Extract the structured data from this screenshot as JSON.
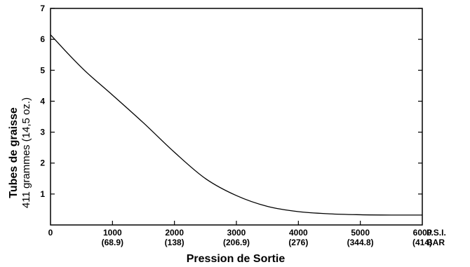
{
  "chart_data": {
    "type": "line",
    "xlabel": "Pression de Sortie",
    "ylabel": "Tubes de graisse",
    "ylabel_sub": "411 grammes (14,5 oz.)",
    "x_unit_primary": "P.S.I.",
    "x_unit_secondary": "BAR",
    "xlim": [
      0,
      6000
    ],
    "ylim": [
      0,
      7
    ],
    "x_ticks": [
      {
        "value": 0,
        "label": "0",
        "sublabel": ""
      },
      {
        "value": 1000,
        "label": "1000",
        "sublabel": "(68.9)"
      },
      {
        "value": 2000,
        "label": "2000",
        "sublabel": "(138)"
      },
      {
        "value": 3000,
        "label": "3000",
        "sublabel": "(206.9)"
      },
      {
        "value": 4000,
        "label": "4000",
        "sublabel": "(276)"
      },
      {
        "value": 5000,
        "label": "5000",
        "sublabel": "(344.8)"
      },
      {
        "value": 6000,
        "label": "6000",
        "sublabel": "(414)"
      }
    ],
    "y_ticks": [
      "1",
      "2",
      "3",
      "4",
      "5",
      "6",
      "7"
    ],
    "grid": false,
    "series": [
      {
        "x": [
          0,
          300,
          600,
          1000,
          1500,
          2000,
          2500,
          3000,
          3500,
          4000,
          4500,
          5000,
          5500,
          6000
        ],
        "y": [
          6.15,
          5.5,
          4.9,
          4.2,
          3.3,
          2.35,
          1.5,
          0.95,
          0.6,
          0.43,
          0.36,
          0.33,
          0.32,
          0.32
        ]
      }
    ]
  }
}
